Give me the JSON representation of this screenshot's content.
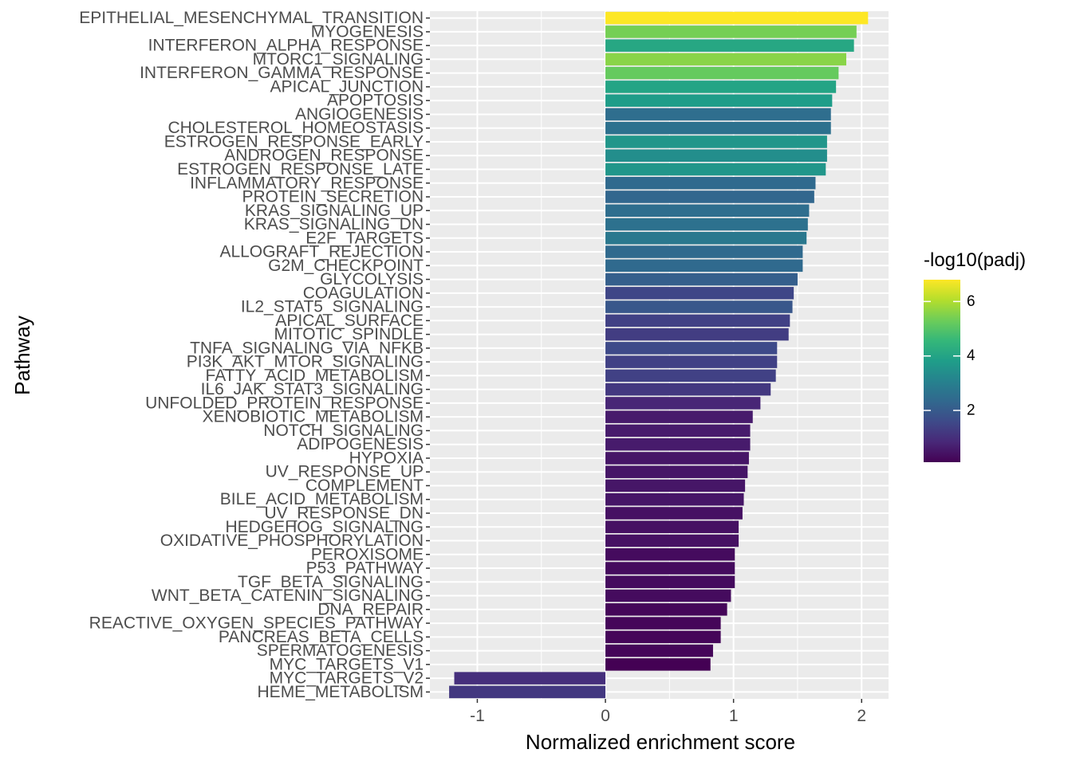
{
  "chart_data": {
    "type": "bar",
    "orientation": "horizontal",
    "title": "",
    "xlabel": "Normalized enrichment score",
    "ylabel": "Pathway",
    "xlim": [
      -1.37,
      2.21
    ],
    "xticks": [
      -1,
      0,
      1,
      2
    ],
    "xtick_labels": [
      "-1",
      "0",
      "1",
      "2"
    ],
    "grid": true,
    "legend": {
      "title": "-log10(padj)",
      "position": "right",
      "type": "colorbar",
      "min": 0.1,
      "max": 6.8,
      "ticks": [
        2,
        4,
        6
      ],
      "tick_labels": [
        "2",
        "4",
        "6"
      ],
      "colormap": "viridis",
      "colors": [
        "#440154",
        "#482878",
        "#3E4A89",
        "#31688E",
        "#26828E",
        "#1F9E89",
        "#35B779",
        "#6DCD59",
        "#B4DE2C",
        "#FDE725"
      ]
    },
    "categories": [
      "EPITHELIAL_MESENCHYMAL_TRANSITION",
      "MYOGENESIS",
      "INTERFERON_ALPHA_RESPONSE",
      "MTORC1_SIGNALING",
      "INTERFERON_GAMMA_RESPONSE",
      "APICAL_JUNCTION",
      "APOPTOSIS",
      "ANGIOGENESIS",
      "CHOLESTEROL_HOMEOSTASIS",
      "ESTROGEN_RESPONSE_EARLY",
      "ANDROGEN_RESPONSE",
      "ESTROGEN_RESPONSE_LATE",
      "INFLAMMATORY_RESPONSE",
      "PROTEIN_SECRETION",
      "KRAS_SIGNALING_UP",
      "KRAS_SIGNALING_DN",
      "E2F_TARGETS",
      "ALLOGRAFT_REJECTION",
      "G2M_CHECKPOINT",
      "GLYCOLYSIS",
      "COAGULATION",
      "IL2_STAT5_SIGNALING",
      "APICAL_SURFACE",
      "MITOTIC_SPINDLE",
      "TNFA_SIGNALING_VIA_NFKB",
      "PI3K_AKT_MTOR_SIGNALING",
      "FATTY_ACID_METABOLISM",
      "IL6_JAK_STAT3_SIGNALING",
      "UNFOLDED_PROTEIN_RESPONSE",
      "XENOBIOTIC_METABOLISM",
      "NOTCH_SIGNALING",
      "ADIPOGENESIS",
      "HYPOXIA",
      "UV_RESPONSE_UP",
      "COMPLEMENT",
      "BILE_ACID_METABOLISM",
      "UV_RESPONSE_DN",
      "HEDGEHOG_SIGNALING",
      "OXIDATIVE_PHOSPHORYLATION",
      "PEROXISOME",
      "P53_PATHWAY",
      "TGF_BETA_SIGNALING",
      "WNT_BETA_CATENIN_SIGNALING",
      "DNA_REPAIR",
      "REACTIVE_OXYGEN_SPECIES_PATHWAY",
      "PANCREAS_BETA_CELLS",
      "SPERMATOGENESIS",
      "MYC_TARGETS_V1",
      "MYC_TARGETS_V2",
      "HEME_METABOLISM"
    ],
    "values": [
      2.05,
      1.96,
      1.94,
      1.88,
      1.82,
      1.8,
      1.77,
      1.76,
      1.76,
      1.73,
      1.73,
      1.72,
      1.64,
      1.63,
      1.59,
      1.58,
      1.57,
      1.54,
      1.54,
      1.5,
      1.47,
      1.46,
      1.44,
      1.43,
      1.34,
      1.34,
      1.33,
      1.29,
      1.21,
      1.15,
      1.13,
      1.13,
      1.12,
      1.11,
      1.09,
      1.08,
      1.07,
      1.04,
      1.04,
      1.01,
      1.01,
      1.01,
      0.98,
      0.95,
      0.9,
      0.9,
      0.84,
      0.82,
      -1.18,
      -1.22
    ],
    "color_values": [
      6.8,
      5.4,
      4.1,
      5.6,
      5.2,
      4.0,
      3.8,
      2.5,
      2.6,
      3.6,
      3.4,
      3.6,
      2.4,
      2.3,
      2.5,
      2.6,
      2.8,
      2.4,
      2.4,
      2.1,
      1.5,
      1.9,
      1.4,
      1.3,
      1.6,
      1.4,
      1.4,
      1.2,
      0.8,
      0.6,
      0.6,
      0.6,
      0.5,
      0.5,
      0.5,
      0.5,
      0.4,
      0.4,
      0.4,
      0.3,
      0.3,
      0.3,
      0.3,
      0.2,
      0.2,
      0.2,
      0.2,
      0.1,
      1.0,
      1.2
    ]
  }
}
